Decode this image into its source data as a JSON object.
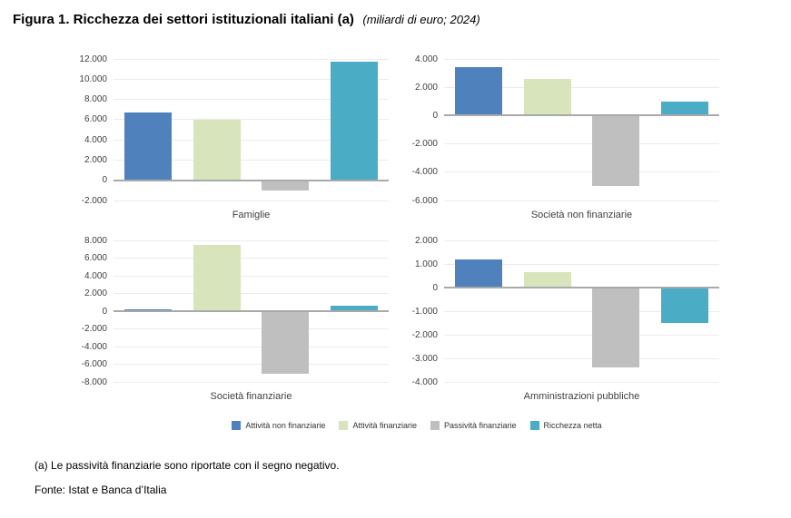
{
  "figure": {
    "title": "Figura 1. Ricchezza dei settori istituzionali italiani (a)",
    "subtitle": "(miliardi di euro; 2024)"
  },
  "legend": {
    "items": [
      {
        "label": "Attività non finanziarie",
        "color": "#4f81bd"
      },
      {
        "label": "Attività finanziarie",
        "color": "#d7e4bc"
      },
      {
        "label": "Passività finanziarie",
        "color": "#bfbfbf"
      },
      {
        "label": "Ricchezza netta",
        "color": "#4bacc6"
      }
    ]
  },
  "chart_style": {
    "gridline_color": "#ebebeb",
    "zero_line_color": "#a9a9a9",
    "tick_label_color": "#404040",
    "title_color": "#3f3f3f",
    "grid": true,
    "legend_position": "bottom-center-shared"
  },
  "chart_data": [
    {
      "type": "bar",
      "title": "Famiglie",
      "categories": [
        "Attività non finanziarie",
        "Attività finanziarie",
        "Passività finanziarie",
        "Ricchezza netta"
      ],
      "values": [
        6750,
        6000,
        -1000,
        11750
      ],
      "ylim": [
        -2000,
        12000
      ],
      "ytick_step": 2000,
      "ytick_labels": [
        "12.000",
        "10.000",
        "8.000",
        "6.000",
        "4.000",
        "2.000",
        "0",
        "-2.000"
      ]
    },
    {
      "type": "bar",
      "title": "Società non finanziarie",
      "categories": [
        "Attività non finanziarie",
        "Attività finanziarie",
        "Passività finanziarie",
        "Ricchezza netta"
      ],
      "values": [
        3400,
        2600,
        -5000,
        1000
      ],
      "ylim": [
        -6000,
        4000
      ],
      "ytick_step": 2000,
      "ytick_labels": [
        "4.000",
        "2.000",
        "0",
        "-2.000",
        "-4.000",
        "-6.000"
      ]
    },
    {
      "type": "bar",
      "title": "Società finanziarie",
      "categories": [
        "Attività non finanziarie",
        "Attività finanziarie",
        "Passività finanziarie",
        "Ricchezza netta"
      ],
      "values": [
        200,
        7500,
        -7100,
        600
      ],
      "ylim": [
        -8000,
        8000
      ],
      "ytick_step": 2000,
      "ytick_labels": [
        "8.000",
        "6.000",
        "4.000",
        "2.000",
        "0",
        "-2.000",
        "-4.000",
        "-6.000",
        "-8.000"
      ]
    },
    {
      "type": "bar",
      "title": "Amministrazioni pubbliche",
      "categories": [
        "Attività non finanziarie",
        "Attività finanziarie",
        "Passività finanziarie",
        "Ricchezza netta"
      ],
      "values": [
        1200,
        650,
        -3400,
        -1500
      ],
      "ylim": [
        -4000,
        2000
      ],
      "ytick_step": 1000,
      "ytick_labels": [
        "2.000",
        "1.000",
        "0",
        "-1.000",
        "-2.000",
        "-3.000",
        "-4.000"
      ]
    }
  ],
  "footnotes": {
    "note_a": "(a) Le passività finanziarie sono riportate con il segno negativo.",
    "source": "Fonte: Istat e Banca d’Italia"
  }
}
